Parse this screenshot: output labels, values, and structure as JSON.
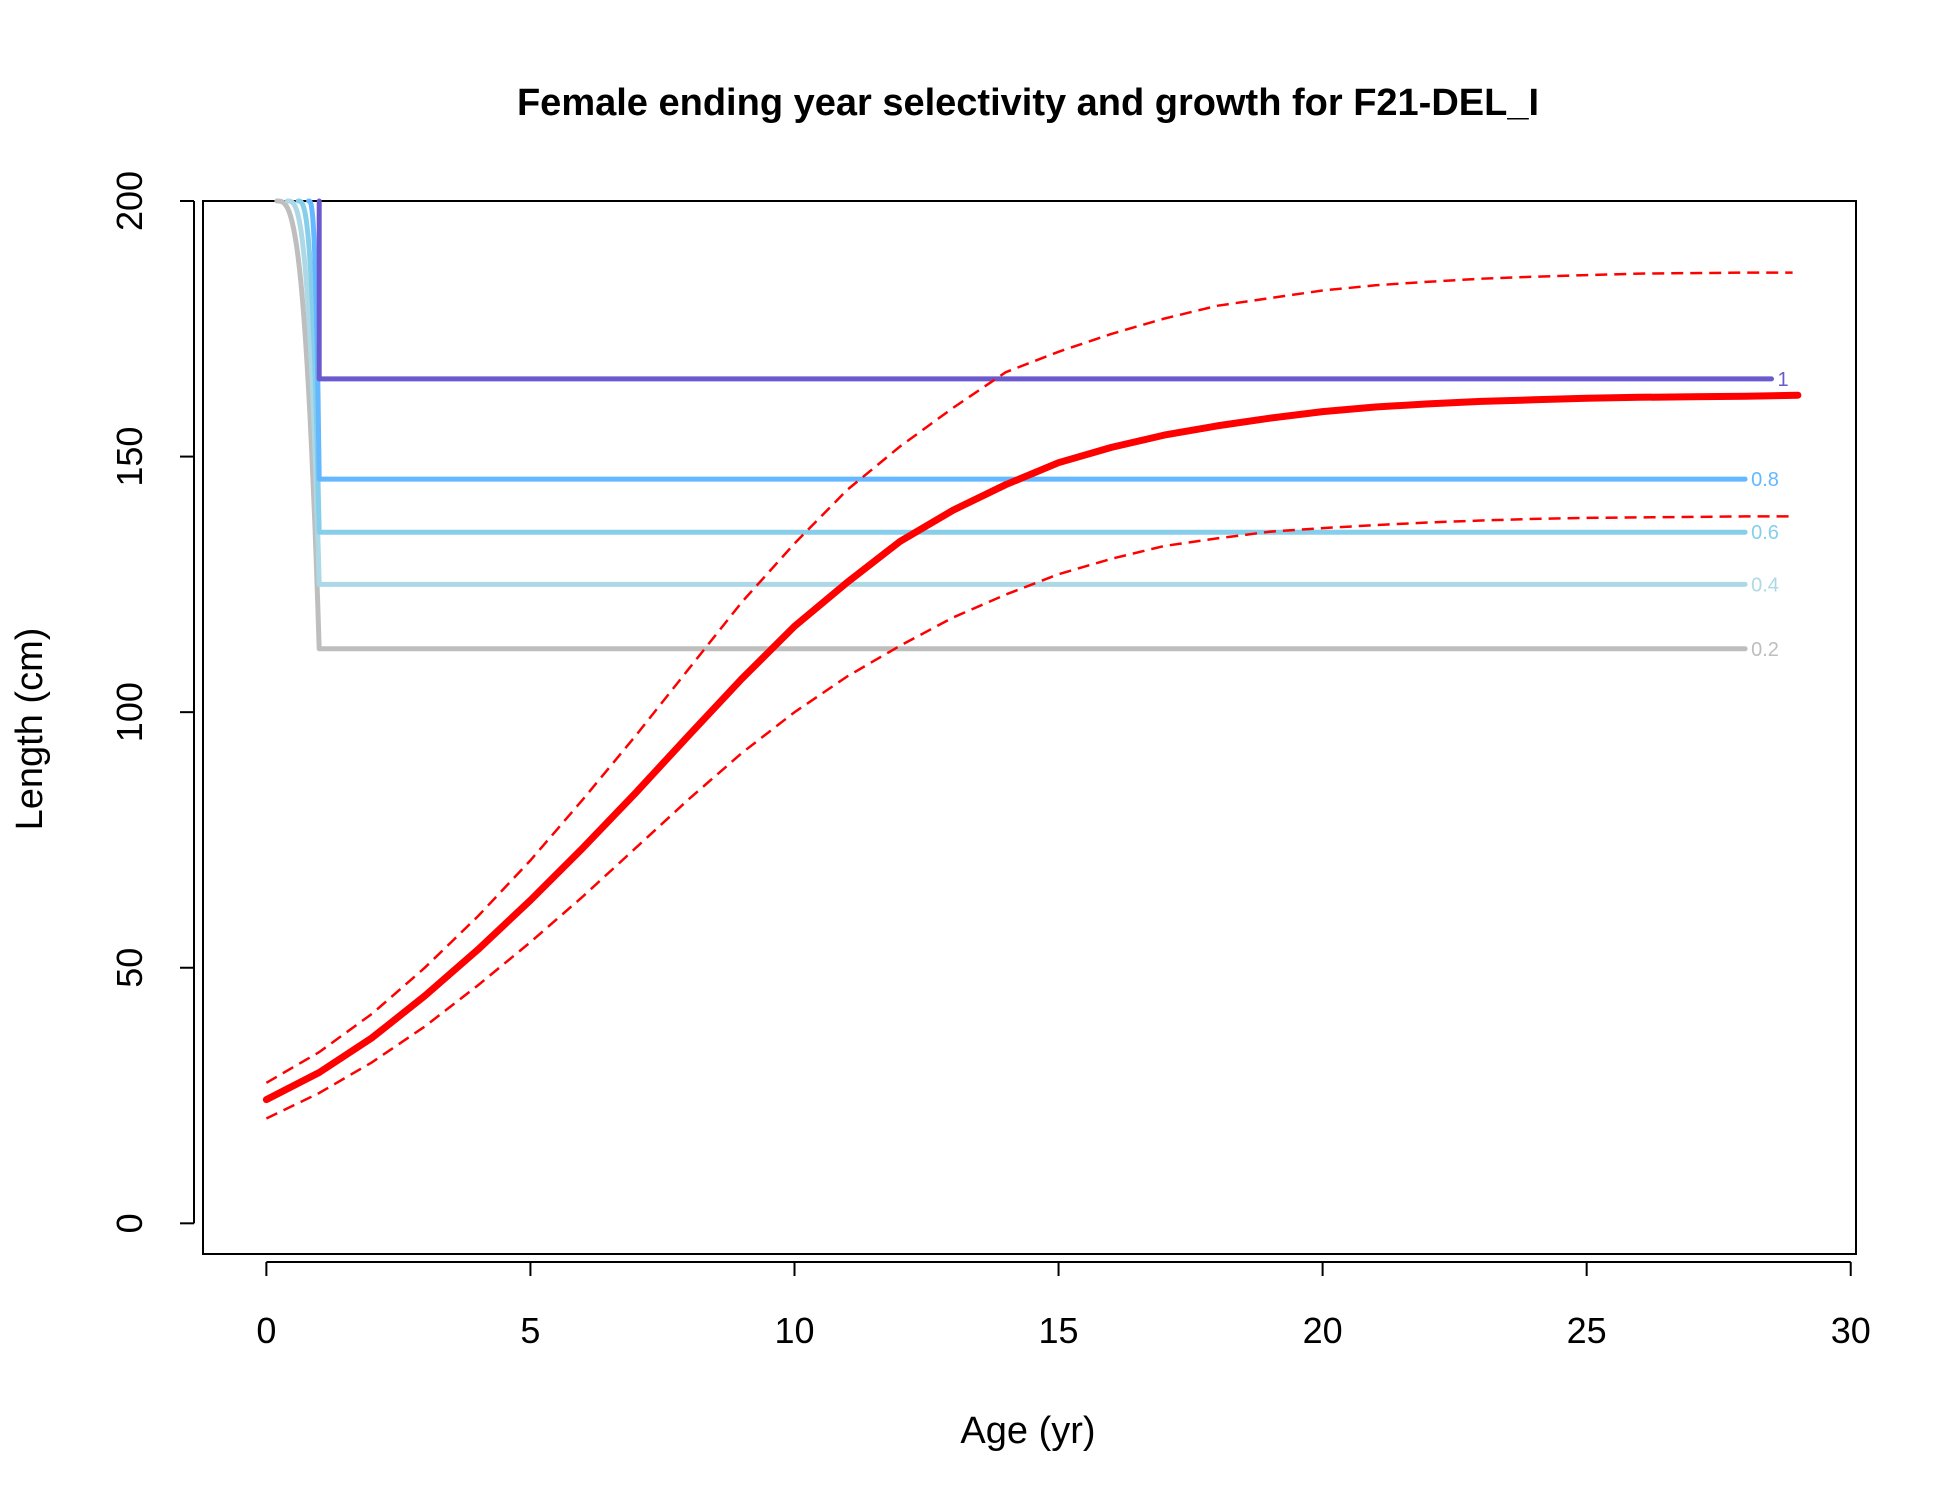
{
  "chart_data": {
    "type": "line",
    "title": "Female ending year selectivity and growth for F21-DEL_I",
    "xlabel": "Age (yr)",
    "ylabel": "Length (cm)",
    "xlim": [
      -1.2,
      30.1
    ],
    "ylim": [
      -6,
      200
    ],
    "xticks": [
      "0",
      "5",
      "10",
      "15",
      "20",
      "25",
      "30"
    ],
    "yticks": [
      "0",
      "50",
      "100",
      "150",
      "200"
    ],
    "grid": false,
    "legend": "none",
    "growth": {
      "color": "#ff0000",
      "x": [
        0,
        1,
        2,
        3,
        4,
        5,
        6,
        7,
        8,
        9,
        10,
        11,
        12,
        13,
        14,
        15,
        16,
        17,
        18,
        19,
        20,
        21,
        22,
        23,
        24,
        25,
        26,
        27,
        28,
        29
      ],
      "mean": [
        24.2,
        29.5,
        36.3,
        44.5,
        53.5,
        63.2,
        73.5,
        84.3,
        95.5,
        106.5,
        116.8,
        125.4,
        133.4,
        139.5,
        144.5,
        148.8,
        151.8,
        154.2,
        156.0,
        157.5,
        158.8,
        159.7,
        160.3,
        160.8,
        161.1,
        161.4,
        161.6,
        161.7,
        161.8,
        162.0
      ],
      "upper": [
        27.5,
        33.5,
        41.0,
        50.0,
        60.0,
        71.0,
        83.0,
        95.5,
        108.5,
        121.5,
        133.0,
        143.5,
        152.0,
        159.5,
        166.5,
        170.5,
        174.0,
        177.0,
        179.5,
        181.0,
        182.5,
        183.5,
        184.2,
        184.8,
        185.2,
        185.5,
        185.8,
        185.9,
        186.0,
        186.0
      ],
      "lower": [
        20.5,
        25.5,
        31.5,
        38.5,
        46.5,
        55.0,
        64.0,
        73.5,
        83.0,
        92.0,
        100.0,
        107.0,
        113.0,
        118.5,
        123.0,
        127.0,
        130.0,
        132.5,
        134.0,
        135.3,
        136.0,
        136.6,
        137.1,
        137.5,
        137.8,
        138.0,
        138.1,
        138.2,
        138.3,
        138.3
      ]
    },
    "selectivity_contours": [
      {
        "level": "0.2",
        "color": "#bebebe",
        "x_start": 0.2,
        "x_end": 28.0,
        "y_low": 112.4,
        "y_top": 200
      },
      {
        "level": "0.4",
        "color": "#add8e6",
        "x_start": 0.4,
        "x_end": 28.0,
        "y_low": 125.0,
        "y_top": 200
      },
      {
        "level": "0.6",
        "color": "#87ceeb",
        "x_start": 0.6,
        "x_end": 28.0,
        "y_low": 135.2,
        "y_top": 200
      },
      {
        "level": "0.8",
        "color": "#63b8ff",
        "x_start": 0.8,
        "x_end": 28.0,
        "y_low": 145.6,
        "y_top": 200
      },
      {
        "level": "1",
        "color": "#6a5acd",
        "x_start": 1.0,
        "x_end": 28.5,
        "y_low": 165.2,
        "y_top": 200
      }
    ]
  }
}
